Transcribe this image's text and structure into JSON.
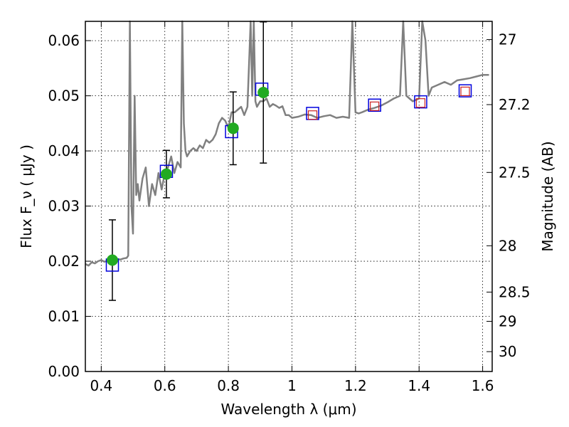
{
  "chart_data": {
    "type": "line",
    "xlabel": "Wavelength  λ (μm)",
    "ylabel": "Flux  F_ν  ( μJy )",
    "ylabel_right": "Magnitude (AB)",
    "xlim": [
      0.35,
      1.63
    ],
    "ylim": [
      0.0,
      0.0635
    ],
    "grid": true,
    "x_ticks": [
      0.4,
      0.6,
      0.8,
      1.0,
      1.2,
      1.4,
      1.6
    ],
    "x_tick_labels": [
      "0.4",
      "0.6",
      "0.8",
      "1",
      "1.2",
      "1.4",
      "1.6"
    ],
    "y_ticks": [
      0.0,
      0.01,
      0.02,
      0.03,
      0.04,
      0.05,
      0.06
    ],
    "y_tick_labels": [
      "0.00",
      "0.01",
      "0.02",
      "0.03",
      "0.04",
      "0.05",
      "0.06"
    ],
    "right_ticks": [
      {
        "label": "27",
        "flux": 0.0602
      },
      {
        "label": "27.2",
        "flux": 0.0484
      },
      {
        "label": "27.5",
        "flux": 0.0361
      },
      {
        "label": "28",
        "flux": 0.0228
      },
      {
        "label": "28.5",
        "flux": 0.0144
      },
      {
        "label": "29",
        "flux": 0.0091
      },
      {
        "label": "30",
        "flux": 0.0036
      }
    ],
    "colors": {
      "spectrum": "#808080",
      "observed_points": "#22aa22",
      "model_squares": "#0000dd",
      "model_small_squares": "#cc2222"
    },
    "series": [
      {
        "kind": "line",
        "x": [
          0.35,
          0.36,
          0.37,
          0.38,
          0.39,
          0.4,
          0.41,
          0.42,
          0.43,
          0.44,
          0.45,
          0.46,
          0.47,
          0.48,
          0.485,
          0.49,
          0.495,
          0.5,
          0.505,
          0.51,
          0.515,
          0.52,
          0.53,
          0.54,
          0.55,
          0.56,
          0.57,
          0.58,
          0.59,
          0.6,
          0.61,
          0.62,
          0.63,
          0.64,
          0.65,
          0.655,
          0.66,
          0.665,
          0.67,
          0.68,
          0.69,
          0.7,
          0.71,
          0.72,
          0.73,
          0.74,
          0.75,
          0.76,
          0.77,
          0.78,
          0.79,
          0.8,
          0.81,
          0.82,
          0.83,
          0.84,
          0.85,
          0.86,
          0.87,
          0.875,
          0.88,
          0.885,
          0.89,
          0.9,
          0.91,
          0.92,
          0.93,
          0.94,
          0.95,
          0.96,
          0.97,
          0.98,
          0.99,
          1.0,
          1.02,
          1.04,
          1.06,
          1.08,
          1.1,
          1.12,
          1.14,
          1.16,
          1.18,
          1.19,
          1.2,
          1.21,
          1.22,
          1.24,
          1.26,
          1.28,
          1.3,
          1.32,
          1.34,
          1.35,
          1.36,
          1.37,
          1.38,
          1.4,
          1.41,
          1.42,
          1.43,
          1.44,
          1.46,
          1.48,
          1.5,
          1.52,
          1.54,
          1.56,
          1.58,
          1.6,
          1.62
        ],
        "y": [
          0.0195,
          0.0192,
          0.0198,
          0.0196,
          0.02,
          0.0202,
          0.0199,
          0.0201,
          0.0203,
          0.0202,
          0.0204,
          0.0203,
          0.0205,
          0.0206,
          0.021,
          0.065,
          0.03,
          0.025,
          0.05,
          0.032,
          0.034,
          0.031,
          0.035,
          0.037,
          0.03,
          0.034,
          0.032,
          0.036,
          0.033,
          0.036,
          0.037,
          0.039,
          0.036,
          0.038,
          0.037,
          0.065,
          0.045,
          0.04,
          0.039,
          0.04,
          0.0405,
          0.04,
          0.041,
          0.0405,
          0.042,
          0.0415,
          0.042,
          0.043,
          0.045,
          0.046,
          0.0455,
          0.0442,
          0.047,
          0.047,
          0.0475,
          0.048,
          0.0465,
          0.048,
          0.065,
          0.05,
          0.065,
          0.049,
          0.048,
          0.049,
          0.049,
          0.0495,
          0.048,
          0.0485,
          0.0482,
          0.0478,
          0.0481,
          0.0465,
          0.0465,
          0.046,
          0.0462,
          0.0466,
          0.0465,
          0.046,
          0.0463,
          0.0465,
          0.046,
          0.0462,
          0.046,
          0.065,
          0.047,
          0.0468,
          0.047,
          0.0475,
          0.0478,
          0.0482,
          0.0488,
          0.0495,
          0.05,
          0.065,
          0.05,
          0.0495,
          0.049,
          0.0495,
          0.065,
          0.06,
          0.05,
          0.0515,
          0.052,
          0.0525,
          0.052,
          0.0528,
          0.053,
          0.0532,
          0.0535,
          0.0538,
          0.0538
        ]
      },
      {
        "kind": "errorbar_points",
        "x": [
          0.435,
          0.605,
          0.815,
          0.91
        ],
        "y": [
          0.0202,
          0.0358,
          0.0441,
          0.0506
        ],
        "yerr": [
          0.0073,
          0.0043,
          0.0066,
          0.0128
        ]
      },
      {
        "kind": "open_squares",
        "x": [
          0.435,
          0.605,
          0.81,
          0.905,
          1.065,
          1.26,
          1.405,
          1.545
        ],
        "y": [
          0.0193,
          0.0363,
          0.0435,
          0.0512,
          0.0468,
          0.0483,
          0.0489,
          0.0509
        ]
      },
      {
        "kind": "small_open_squares",
        "x": [
          1.065,
          1.26,
          1.405,
          1.545
        ],
        "y": [
          0.0465,
          0.0481,
          0.0487,
          0.0508
        ]
      }
    ]
  }
}
